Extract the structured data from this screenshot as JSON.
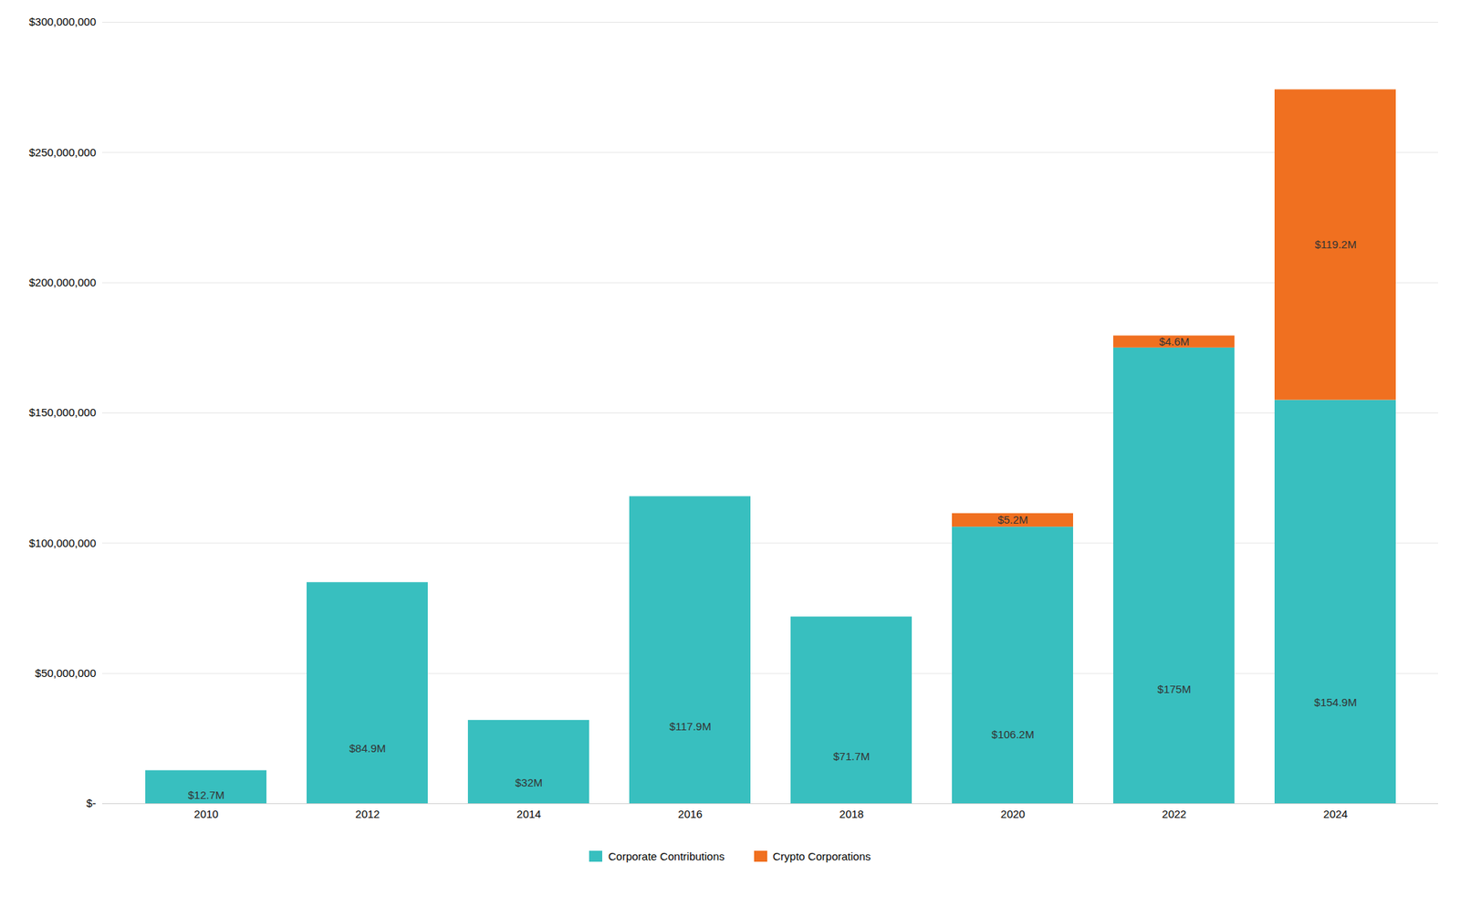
{
  "chart_data": {
    "type": "bar",
    "stacked": true,
    "categories": [
      "2010",
      "2012",
      "2014",
      "2016",
      "2018",
      "2020",
      "2022",
      "2024"
    ],
    "series": [
      {
        "name": "Corporate Contributions",
        "color": "#38bfbf",
        "values": [
          12700000,
          84900000,
          32000000,
          117900000,
          71700000,
          106200000,
          175000000,
          154900000
        ],
        "value_labels": [
          "$12.7M",
          "$84.9M",
          "$32M",
          "$117.9M",
          "$71.7M",
          "$106.2M",
          "$175M",
          "$154.9M"
        ]
      },
      {
        "name": "Crypto Corporations",
        "color": "#f07020",
        "values": [
          0,
          0,
          0,
          0,
          0,
          5200000,
          4600000,
          119200000
        ],
        "value_labels": [
          null,
          null,
          null,
          null,
          null,
          "$5.2M",
          "$4.6M",
          "$119.2M"
        ]
      }
    ],
    "ylim": [
      0,
      300000000
    ],
    "yticks": [
      {
        "value": 0,
        "label": "$-"
      },
      {
        "value": 50000000,
        "label": "$50,000,000"
      },
      {
        "value": 100000000,
        "label": "$100,000,000"
      },
      {
        "value": 150000000,
        "label": "$150,000,000"
      },
      {
        "value": 200000000,
        "label": "$200,000,000"
      },
      {
        "value": 250000000,
        "label": "$250,000,000"
      },
      {
        "value": 300000000,
        "label": "$300,000,000"
      }
    ],
    "grid": true,
    "data_labels": true,
    "legend": "bottom"
  }
}
